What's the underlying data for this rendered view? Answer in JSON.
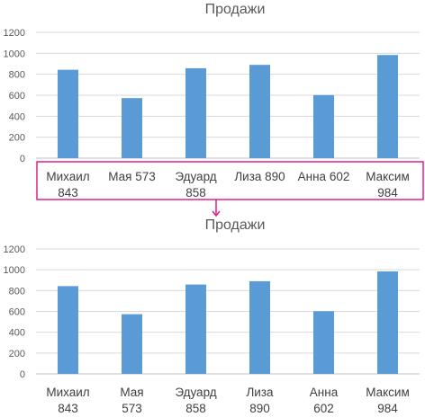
{
  "chart_data": [
    {
      "type": "bar",
      "title": "Продажи",
      "categories": [
        "Михаил 843",
        "Мая 573",
        "Эдуард 858",
        "Лиза 890",
        "Анна 602",
        "Максим 984"
      ],
      "category_label_lines": [
        [
          "Михаил",
          "843"
        ],
        [
          "Мая 573"
        ],
        [
          "Эдуард",
          "858"
        ],
        [
          "Лиза 890"
        ],
        [
          "Анна 602"
        ],
        [
          "Максим",
          "984"
        ]
      ],
      "values": [
        843,
        573,
        858,
        890,
        602,
        984
      ],
      "ylim": [
        0,
        1200
      ],
      "yticks": [
        0,
        200,
        400,
        600,
        800,
        1000,
        1200
      ],
      "ytick_labels": [
        "0",
        "200",
        "400",
        "600",
        "800",
        "1000",
        "1200"
      ],
      "grid": true,
      "bar_color": "#5b9bd5",
      "category_labels_highlighted": true
    },
    {
      "type": "bar",
      "title": "Продажи",
      "categories": [
        "Михаил 843",
        "Мая 573",
        "Эдуард 858",
        "Лиза 890",
        "Анна 602",
        "Максим 984"
      ],
      "category_label_lines": [
        [
          "Михаил",
          "843"
        ],
        [
          "Мая",
          "573"
        ],
        [
          "Эдуард",
          "858"
        ],
        [
          "Лиза",
          "890"
        ],
        [
          "Анна",
          "602"
        ],
        [
          "Максим",
          "984"
        ]
      ],
      "values": [
        843,
        573,
        858,
        890,
        602,
        984
      ],
      "ylim": [
        0,
        1200
      ],
      "yticks": [
        0,
        200,
        400,
        600,
        800,
        1000,
        1200
      ],
      "ytick_labels": [
        "0",
        "200",
        "400",
        "600",
        "800",
        "1000",
        "1200"
      ],
      "grid": true,
      "bar_color": "#5b9bd5",
      "category_labels_highlighted": false
    }
  ],
  "highlight_color": "#e0218a"
}
